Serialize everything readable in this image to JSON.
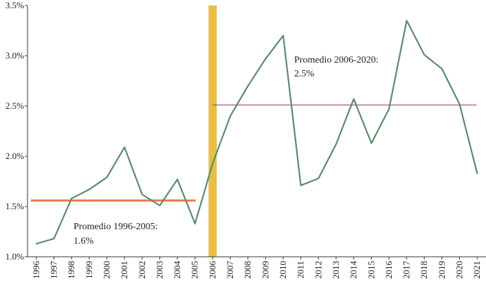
{
  "chart_data": {
    "type": "line",
    "title": "",
    "xlabel": "",
    "ylabel": "",
    "categories": [
      "1996",
      "1997",
      "1998",
      "1999",
      "2000",
      "2001",
      "2002",
      "2003",
      "2004",
      "2005",
      "2006",
      "2007",
      "2008",
      "2009",
      "2010",
      "2011",
      "2012",
      "2013",
      "2014",
      "2015",
      "2016",
      "2017",
      "2018",
      "2019",
      "2020",
      "2021"
    ],
    "series": [
      {
        "values": [
          1.13,
          1.18,
          1.58,
          1.67,
          1.79,
          2.09,
          1.62,
          1.51,
          1.77,
          1.33,
          1.93,
          2.4,
          2.7,
          2.97,
          3.2,
          1.71,
          1.78,
          2.12,
          2.57,
          2.13,
          2.47,
          3.35,
          3.01,
          2.87,
          2.52,
          1.83
        ],
        "color": "#5a8a6a"
      }
    ],
    "ylim": [
      1.0,
      3.5
    ],
    "yticks": [
      "1.0%",
      "1.5%",
      "2.0%",
      "2.5%",
      "3.0%",
      "3.5%"
    ],
    "ytick_values": [
      1.0,
      1.5,
      2.0,
      2.5,
      3.0,
      3.5
    ],
    "grid": false,
    "highlight": {
      "category": "2006",
      "color": "#e8be4a"
    },
    "averages": [
      {
        "from": "1996",
        "to": "2005",
        "value": 1.56,
        "color": "#e67a4e",
        "label_line1": "Promedio 1996-2005:",
        "label_line2": "1.6%"
      },
      {
        "from": "2006",
        "to": "2021",
        "value": 2.51,
        "color": "#8b3a7a",
        "label_line1": "Promedio 2006-2020:",
        "label_line2": "2.5%"
      }
    ]
  }
}
